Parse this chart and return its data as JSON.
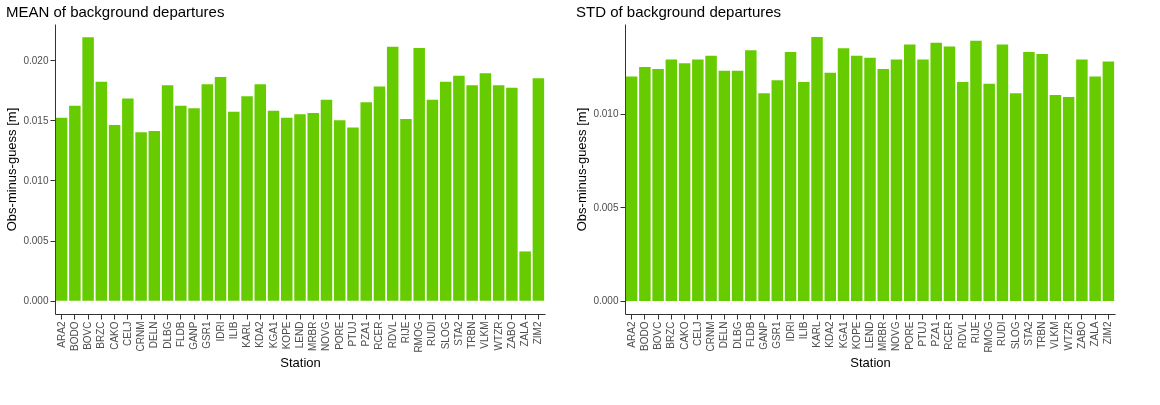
{
  "chart_data": [
    {
      "type": "bar",
      "title": "MEAN of background departures",
      "xlabel": "Station",
      "ylabel": "Obs-minus-guess [m]",
      "categories": [
        "ARA2",
        "BODO",
        "BOVC",
        "BRZC",
        "CAKO",
        "CELJ",
        "CRNM",
        "DELN",
        "DLBG",
        "FLDB",
        "GANP",
        "GSR1",
        "IDRI",
        "ILIB",
        "KARL",
        "KDA2",
        "KGA1",
        "KOPE",
        "LEND",
        "MRBR",
        "NOVG",
        "PORE",
        "PTUJ",
        "PZA1",
        "RCER",
        "RDVL",
        "RIJE",
        "RMOG",
        "RUDI",
        "SLOG",
        "STA2",
        "TRBN",
        "VLKM",
        "WTZR",
        "ZABO",
        "ZALA",
        "ZIM2"
      ],
      "values": [
        0.0152,
        0.0162,
        0.0219,
        0.0182,
        0.0146,
        0.0168,
        0.014,
        0.0141,
        0.0179,
        0.0162,
        0.016,
        0.018,
        0.0186,
        0.0157,
        0.017,
        0.018,
        0.0158,
        0.0152,
        0.0155,
        0.0156,
        0.0167,
        0.015,
        0.0144,
        0.0165,
        0.0178,
        0.0211,
        0.0151,
        0.021,
        0.0167,
        0.0182,
        0.0187,
        0.0179,
        0.0189,
        0.0179,
        0.0177,
        0.0041,
        0.0185
      ],
      "color": "#66cc00",
      "ylim": [
        -0.0011,
        0.023
      ],
      "yticks": [
        {
          "value": 0,
          "label": "0.000"
        },
        {
          "value": 0.005,
          "label": "0.005"
        },
        {
          "value": 0.01,
          "label": "0.010"
        },
        {
          "value": 0.015,
          "label": "0.015"
        },
        {
          "value": 0.02,
          "label": "0.020"
        }
      ],
      "grid": false
    },
    {
      "type": "bar",
      "title": "STD of background departures",
      "xlabel": "Station",
      "ylabel": "Obs-minus-guess [m]",
      "categories": [
        "ARA2",
        "BODO",
        "BOVC",
        "BRZC",
        "CAKO",
        "CELJ",
        "CRNM",
        "DELN",
        "DLBG",
        "FLDB",
        "GANP",
        "GSR1",
        "IDRI",
        "ILIB",
        "KARL",
        "KDA2",
        "KGA1",
        "KOPE",
        "LEND",
        "MRBR",
        "NOVG",
        "PORE",
        "PTUJ",
        "PZA1",
        "RCER",
        "RDVL",
        "RIJE",
        "RMOG",
        "RUDI",
        "SLOG",
        "STA2",
        "TRBN",
        "VLKM",
        "WTZR",
        "ZABO",
        "ZALA",
        "ZIM2"
      ],
      "values": [
        0.012,
        0.0125,
        0.0124,
        0.0129,
        0.0127,
        0.0129,
        0.0131,
        0.0123,
        0.0123,
        0.0134,
        0.0111,
        0.0118,
        0.0133,
        0.0117,
        0.0141,
        0.0122,
        0.0135,
        0.0131,
        0.013,
        0.0124,
        0.0129,
        0.0137,
        0.0129,
        0.0138,
        0.0136,
        0.0117,
        0.0139,
        0.0116,
        0.0137,
        0.0111,
        0.0133,
        0.0132,
        0.011,
        0.0109,
        0.0129,
        0.012,
        0.0128
      ],
      "color": "#66cc00",
      "ylim": [
        -0.0007,
        0.0148
      ],
      "yticks": [
        {
          "value": 0,
          "label": "0.000"
        },
        {
          "value": 0.005,
          "label": "0.005"
        },
        {
          "value": 0.01,
          "label": "0.010"
        }
      ],
      "grid": false
    }
  ]
}
